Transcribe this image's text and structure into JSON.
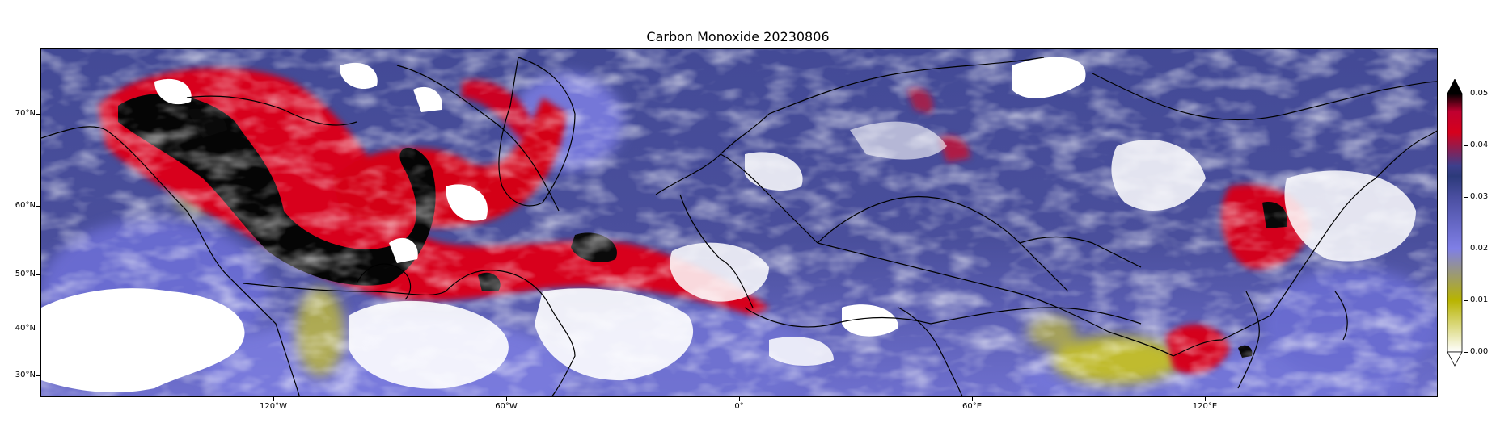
{
  "title": "Carbon Monoxide 20230806",
  "lat_labels": [
    "70°N",
    "60°N",
    "50°N",
    "40°N",
    "30°N"
  ],
  "lon_labels": [
    "120°W",
    "60°W",
    "0°",
    "60°E",
    "120°E"
  ],
  "colorbar": {
    "ticks": [
      "0.00",
      "0.01",
      "0.02",
      "0.03",
      "0.04",
      "0.05"
    ],
    "extend": "both",
    "colors": [
      "#ffffff",
      "#b8b400",
      "#7f7fe6",
      "#3d3f8c",
      "#d6001c",
      "#000000"
    ]
  },
  "map": {
    "projection": "Mercator",
    "lon_range": [
      -180,
      180
    ],
    "lat_range": [
      25,
      80
    ],
    "background_color": "#4a4f9c",
    "missing_color": "#ffffff",
    "coastlines": true
  }
}
